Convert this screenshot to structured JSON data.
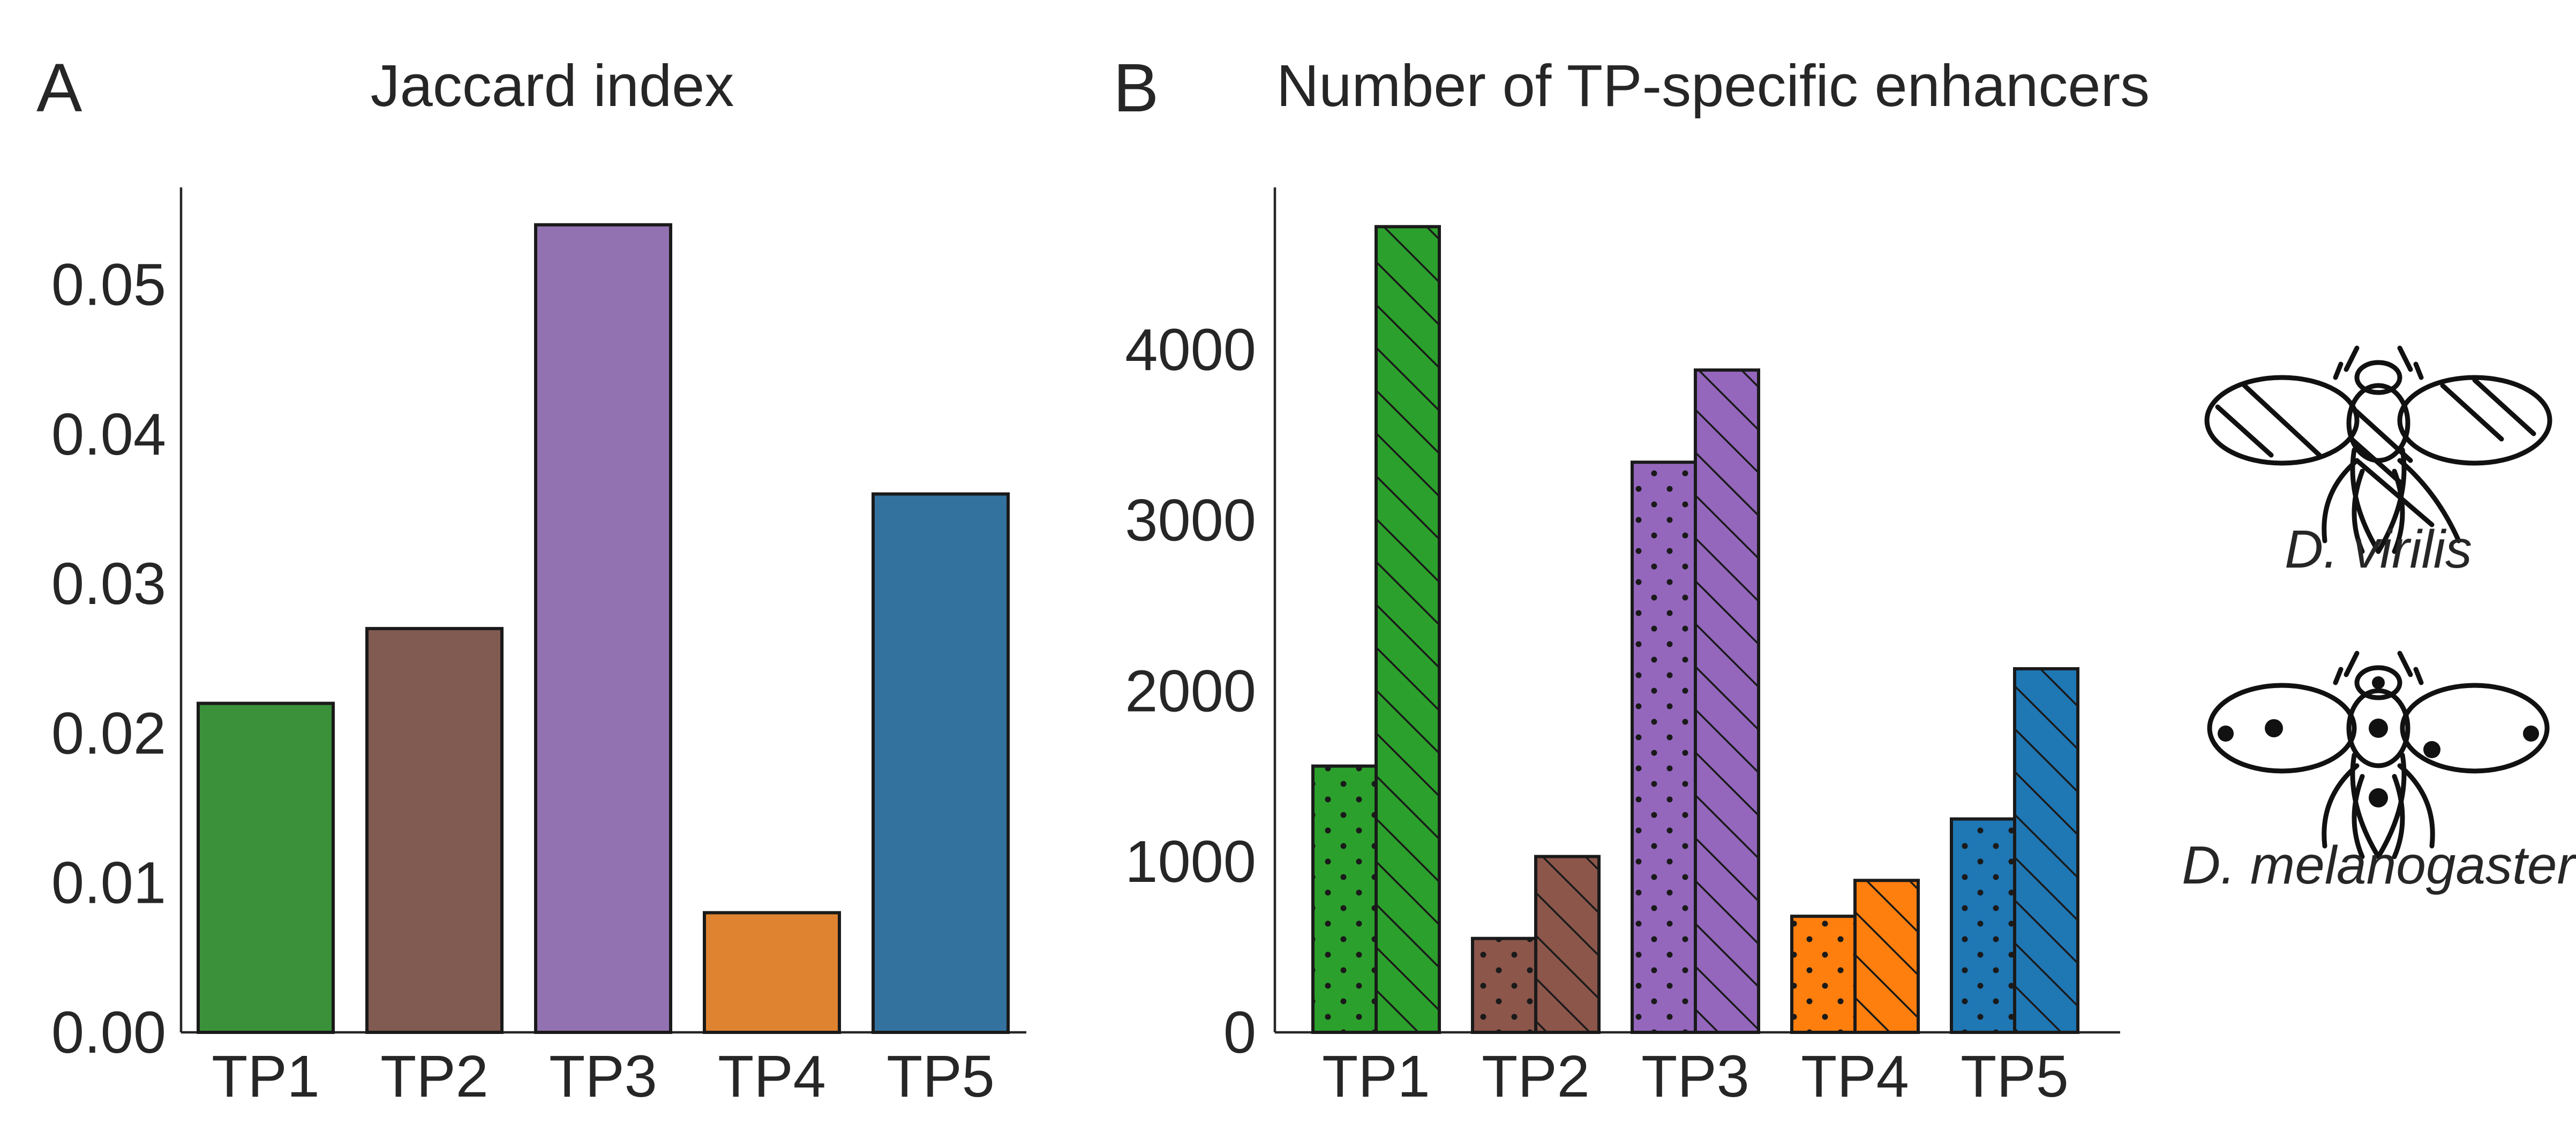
{
  "colors": {
    "TP1": "#2ca02c",
    "TP2": "#8c564b",
    "TP3": "#9467bd",
    "TP4": "#ff7f0e",
    "TP5": "#1f77b4",
    "TP1_A": "#3a913a",
    "TP2_A": "#815a52",
    "TP3_A": "#9272b1",
    "TP4_A": "#e08330",
    "TP5_A": "#33729f"
  },
  "panel_a": {
    "letter": "A",
    "title": "Jaccard index"
  },
  "panel_b": {
    "letter": "B",
    "title": "Number of TP-specific enhancers"
  },
  "legend": {
    "virilis": {
      "label": "D. virilis",
      "icon": "fly-hatched-icon",
      "pattern": "hatched"
    },
    "melanogaster": {
      "label": "D. melanogaster",
      "icon": "fly-dotted-icon",
      "pattern": "dotted"
    }
  },
  "chart_data": [
    {
      "type": "bar",
      "title": "Jaccard index",
      "categories": [
        "TP1",
        "TP2",
        "TP3",
        "TP4",
        "TP5"
      ],
      "values": [
        0.022,
        0.027,
        0.054,
        0.008,
        0.036
      ],
      "ylim": [
        0,
        0.0565
      ],
      "yticks": [
        "0.00",
        "0.01",
        "0.02",
        "0.03",
        "0.04",
        "0.05"
      ],
      "xlabel": "",
      "ylabel": "",
      "grid": false
    },
    {
      "type": "bar",
      "title": "Number of TP-specific enhancers",
      "categories": [
        "TP1",
        "TP2",
        "TP3",
        "TP4",
        "TP5"
      ],
      "series": [
        {
          "name": "D. melanogaster",
          "pattern": "dotted",
          "values": [
            1560,
            550,
            3340,
            680,
            1250
          ]
        },
        {
          "name": "D. virilis",
          "pattern": "hatched",
          "values": [
            4720,
            1030,
            3880,
            890,
            2130
          ]
        }
      ],
      "ylim": [
        0,
        4950
      ],
      "yticks": [
        "0",
        "1000",
        "2000",
        "3000",
        "4000"
      ],
      "xlabel": "",
      "ylabel": "",
      "grid": false,
      "legend_position": "right"
    }
  ]
}
